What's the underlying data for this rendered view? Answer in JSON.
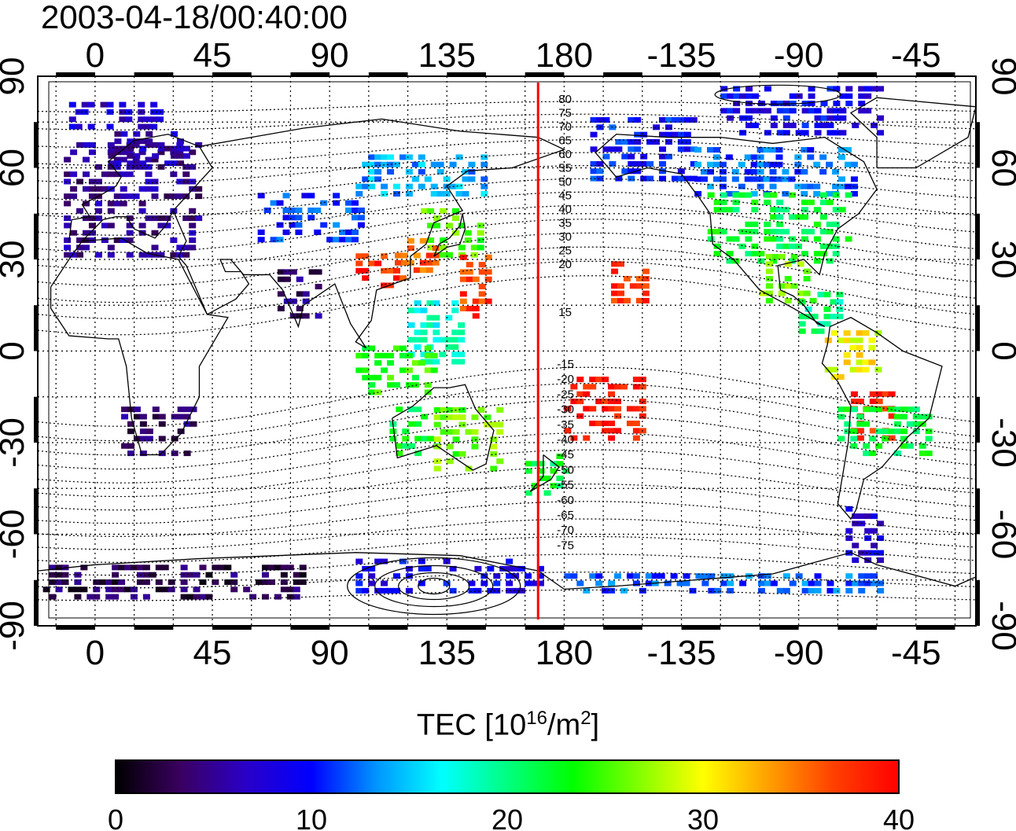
{
  "title": "2003-04-18/00:40:00",
  "map": {
    "lon_ticks_top": [
      "0",
      "45",
      "90",
      "135",
      "180",
      "-135",
      "-90",
      "-45"
    ],
    "lon_ticks_bottom": [
      "0",
      "45",
      "90",
      "135",
      "180",
      "-135",
      "-90",
      "-45"
    ],
    "lat_ticks_left": [
      "90",
      "60",
      "30",
      "0",
      "-30",
      "-60",
      "-90"
    ],
    "lat_ticks_right": [
      "90",
      "60",
      "30",
      "0",
      "-30",
      "-60",
      "-90"
    ],
    "lon_tick_values": [
      0,
      45,
      90,
      135,
      180,
      225,
      270,
      315
    ],
    "lat_tick_values": [
      90,
      60,
      30,
      0,
      -30,
      -60,
      -90
    ],
    "lon_range": [
      -22,
      338
    ],
    "lat_range": [
      -90,
      90
    ],
    "grid": true,
    "red_line_lon": 170,
    "red_line_color": "#ff0000",
    "contour_labels_north": [
      "80",
      "75",
      "70",
      "65",
      "60",
      "55",
      "50",
      "45",
      "40",
      "35",
      "30",
      "25",
      "20",
      "15"
    ],
    "contour_labels_south": [
      "-15",
      "-20",
      "-25",
      "-30",
      "-35",
      "-40",
      "-45",
      "-50",
      "-55",
      "-60",
      "-65",
      "-70",
      "-75"
    ]
  },
  "colorbar": {
    "label_main": "TEC  [10",
    "label_sup1": "16",
    "label_mid": "/m",
    "label_sup2": "2",
    "label_end": "]",
    "tick_labels": [
      "0",
      "10",
      "20",
      "30",
      "40"
    ],
    "range": [
      0,
      40
    ],
    "colors": [
      "#000000",
      "#3a0060",
      "#2a00c8",
      "#0000ff",
      "#0096ff",
      "#00ffff",
      "#00ff80",
      "#00ff00",
      "#80ff00",
      "#ffff00",
      "#ffa000",
      "#ff4000",
      "#ff0000"
    ]
  },
  "tec_regions": [
    {
      "name": "europe",
      "lon": [
        -12,
        40
      ],
      "lat": [
        30,
        68
      ],
      "tec": 5
    },
    {
      "name": "scandinavia",
      "lon": [
        5,
        35
      ],
      "lat": [
        60,
        72
      ],
      "tec": 6
    },
    {
      "name": "arctic-europe",
      "lon": [
        -10,
        25
      ],
      "lat": [
        72,
        80
      ],
      "tec": 7
    },
    {
      "name": "central-asia",
      "lon": [
        60,
        105
      ],
      "lat": [
        35,
        50
      ],
      "tec": 11
    },
    {
      "name": "russia-east",
      "lon": [
        100,
        150
      ],
      "lat": [
        50,
        62
      ],
      "tec": 14
    },
    {
      "name": "japan",
      "lon": [
        125,
        148
      ],
      "lat": [
        30,
        45
      ],
      "tec": 25
    },
    {
      "name": "korea-china",
      "lon": [
        115,
        130
      ],
      "lat": [
        25,
        35
      ],
      "tec": 36
    },
    {
      "name": "china-south",
      "lon": [
        100,
        120
      ],
      "lat": [
        20,
        30
      ],
      "tec": 38
    },
    {
      "name": "pacific-red",
      "lon": [
        140,
        150
      ],
      "lat": [
        10,
        30
      ],
      "tec": 37
    },
    {
      "name": "philippines",
      "lon": [
        120,
        140
      ],
      "lat": [
        -5,
        15
      ],
      "tec": 18
    },
    {
      "name": "indonesia",
      "lon": [
        100,
        130
      ],
      "lat": [
        -15,
        0
      ],
      "tec": 24
    },
    {
      "name": "australia-west",
      "lon": [
        113,
        130
      ],
      "lat": [
        -35,
        -20
      ],
      "tec": 22
    },
    {
      "name": "australia-east",
      "lon": [
        130,
        155
      ],
      "lat": [
        -40,
        -20
      ],
      "tec": 26
    },
    {
      "name": "new-zealand",
      "lon": [
        165,
        180
      ],
      "lat": [
        -48,
        -35
      ],
      "tec": 22
    },
    {
      "name": "pacific-south-red",
      "lon": [
        180,
        210
      ],
      "lat": [
        -30,
        -10
      ],
      "tec": 39
    },
    {
      "name": "hawaii-red",
      "lon": [
        198,
        212
      ],
      "lat": [
        15,
        28
      ],
      "tec": 38
    },
    {
      "name": "alaska",
      "lon": [
        190,
        230
      ],
      "lat": [
        55,
        75
      ],
      "tec": 10
    },
    {
      "name": "canada",
      "lon": [
        230,
        290
      ],
      "lat": [
        50,
        65
      ],
      "tec": 12
    },
    {
      "name": "arctic-canada",
      "lon": [
        240,
        300
      ],
      "lat": [
        70,
        85
      ],
      "tec": 9
    },
    {
      "name": "usa",
      "lon": [
        235,
        290
      ],
      "lat": [
        28,
        50
      ],
      "tec": 22
    },
    {
      "name": "mexico",
      "lon": [
        255,
        275
      ],
      "lat": [
        15,
        30
      ],
      "tec": 26
    },
    {
      "name": "central-america",
      "lon": [
        270,
        285
      ],
      "lat": [
        5,
        18
      ],
      "tec": 20
    },
    {
      "name": "south-america-north",
      "lon": [
        280,
        300
      ],
      "lat": [
        -10,
        5
      ],
      "tec": 30
    },
    {
      "name": "south-america-red",
      "lon": [
        290,
        305
      ],
      "lat": [
        -30,
        -15
      ],
      "tec": 38
    },
    {
      "name": "south-america-mid",
      "lon": [
        285,
        320
      ],
      "lat": [
        -35,
        -20
      ],
      "tec": 22
    },
    {
      "name": "patagonia",
      "lon": [
        288,
        300
      ],
      "lat": [
        -70,
        -50
      ],
      "tec": 8
    },
    {
      "name": "africa-south",
      "lon": [
        10,
        40
      ],
      "lat": [
        -35,
        -20
      ],
      "tec": 4
    },
    {
      "name": "antarctica-west",
      "lon": [
        -20,
        80
      ],
      "lat": [
        -82,
        -72
      ],
      "tec": 3
    },
    {
      "name": "antarctica-mid",
      "lon": [
        100,
        170
      ],
      "lat": [
        -80,
        -70
      ],
      "tec": 9
    },
    {
      "name": "antarctica-east",
      "lon": [
        180,
        300
      ],
      "lat": [
        -80,
        -75
      ],
      "tec": 12
    },
    {
      "name": "india",
      "lon": [
        70,
        85
      ],
      "lat": [
        10,
        25
      ],
      "tec": 4
    }
  ]
}
